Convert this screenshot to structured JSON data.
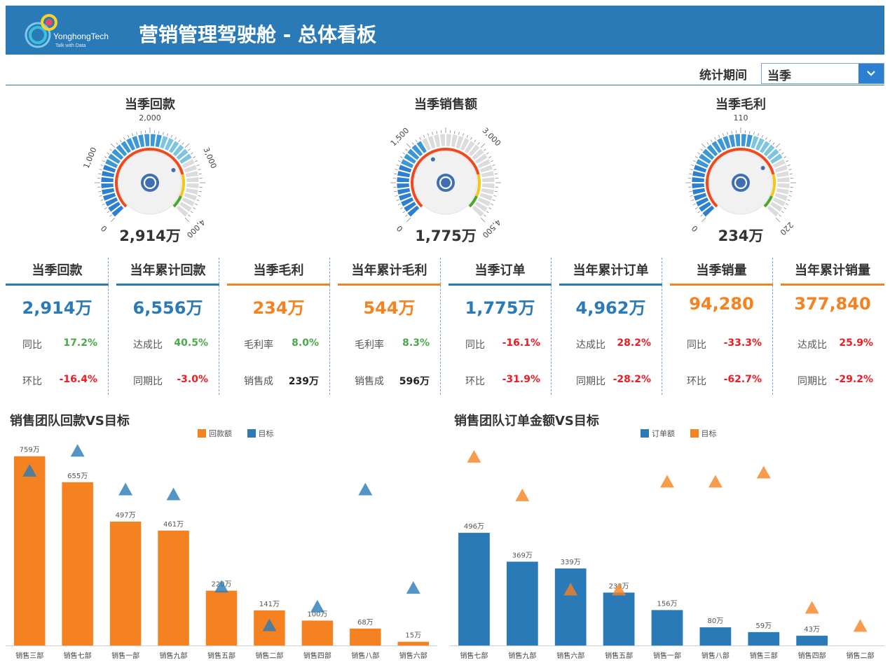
{
  "header": {
    "logo_name": "YonghongTech",
    "logo_tagline": "Talk with Data",
    "title": "营销管理驾驶舱 - 总体看板"
  },
  "filter": {
    "label": "统计期间",
    "value": "当季",
    "icon": "chevron-down-icon"
  },
  "colors": {
    "header_bg": "#2b7ab8",
    "blue": "#2b7ab8",
    "orange": "#f58220",
    "green": "#4aaa48",
    "red": "#ee1c24"
  },
  "gauges": [
    {
      "title": "当季回款",
      "value_text": "2,914万",
      "value": 2914,
      "min": 0,
      "max": 4000,
      "ticks": [
        "0",
        "1,000",
        "2,000",
        "3,000",
        "4,000"
      ]
    },
    {
      "title": "当季销售额",
      "value_text": "1,775万",
      "value": 1775,
      "min": 0,
      "max": 4500,
      "ticks": [
        "0",
        "1,500",
        "3,000",
        "4,500"
      ]
    },
    {
      "title": "当季毛利",
      "value_text": "234万",
      "value": 234,
      "min": 0,
      "max": 330,
      "ticks": [
        "0",
        "110",
        "220"
      ]
    }
  ],
  "kpis": [
    {
      "title": "当季回款",
      "value": "2,914万",
      "theme": "blue",
      "rows": [
        {
          "label": "同比",
          "value": "17.2%",
          "tone": "green"
        },
        {
          "label": "环比",
          "value": "-16.4%",
          "tone": "red"
        }
      ]
    },
    {
      "title": "当年累计回款",
      "value": "6,556万",
      "theme": "blue",
      "rows": [
        {
          "label": "达成比",
          "value": "40.5%",
          "tone": "green"
        },
        {
          "label": "同期比",
          "value": "-3.0%",
          "tone": "red"
        }
      ]
    },
    {
      "title": "当季毛利",
      "value": "234万",
      "theme": "orange",
      "rows": [
        {
          "label": "毛利率",
          "value": "8.0%",
          "tone": "green"
        },
        {
          "label": "销售成",
          "value": "239万",
          "tone": "dark"
        }
      ]
    },
    {
      "title": "当年累计毛利",
      "value": "544万",
      "theme": "orange",
      "rows": [
        {
          "label": "毛利率",
          "value": "8.3%",
          "tone": "green"
        },
        {
          "label": "销售成",
          "value": "596万",
          "tone": "dark"
        }
      ]
    },
    {
      "title": "当季订单",
      "value": "1,775万",
      "theme": "blue",
      "rows": [
        {
          "label": "同比",
          "value": "-16.1%",
          "tone": "red"
        },
        {
          "label": "环比",
          "value": "-31.9%",
          "tone": "red"
        }
      ]
    },
    {
      "title": "当年累计订单",
      "value": "4,962万",
      "theme": "blue",
      "rows": [
        {
          "label": "达成比",
          "value": "28.2%",
          "tone": "red"
        },
        {
          "label": "同期比",
          "value": "-28.2%",
          "tone": "red"
        }
      ]
    },
    {
      "title": "当季销量",
      "value": "94,280",
      "theme": "orange",
      "rows": [
        {
          "label": "同比",
          "value": "-33.3%",
          "tone": "red"
        },
        {
          "label": "环比",
          "value": "-62.7%",
          "tone": "red"
        }
      ]
    },
    {
      "title": "当年累计销量",
      "value": "377,840",
      "theme": "orange",
      "rows": [
        {
          "label": "达成比",
          "value": "25.9%",
          "tone": "red"
        },
        {
          "label": "同期比",
          "value": "-29.2%",
          "tone": "red"
        }
      ]
    }
  ],
  "chart_data": [
    {
      "type": "bar",
      "title": "销售团队回款VS目标",
      "categories": [
        "销售三部",
        "销售七部",
        "销售一部",
        "销售九部",
        "销售五部",
        "销售二部",
        "销售四部",
        "销售八部",
        "销售六部"
      ],
      "series": [
        {
          "name": "回款额",
          "kind": "bar",
          "color": "#f58220",
          "values": [
            759,
            655,
            497,
            461,
            220,
            141,
            100,
            68,
            15
          ]
        },
        {
          "name": "目标",
          "kind": "marker",
          "color": "#2b7ab8",
          "values": [
            700,
            780,
            625,
            605,
            235,
            80,
            155,
            625,
            230
          ]
        }
      ],
      "value_labels": [
        "759万",
        "655万",
        "497万",
        "461万",
        "220万",
        "141万",
        "100万",
        "68万",
        "15万"
      ],
      "ylim": [
        0,
        820
      ]
    },
    {
      "type": "bar",
      "title": "销售团队订单金额VS目标",
      "categories": [
        "销售七部",
        "销售九部",
        "销售六部",
        "销售五部",
        "销售一部",
        "销售八部",
        "销售三部",
        "销售四部",
        "销售二部"
      ],
      "series": [
        {
          "name": "订单额",
          "kind": "bar",
          "color": "#2b7ab8",
          "values": [
            496,
            369,
            339,
            233,
            156,
            80,
            59,
            43,
            0
          ]
        },
        {
          "name": "目标",
          "kind": "marker",
          "color": "#f58220",
          "values": [
            830,
            660,
            245,
            245,
            720,
            720,
            760,
            165,
            85
          ]
        }
      ],
      "value_labels": [
        "496万",
        "369万",
        "339万",
        "233万",
        "156万",
        "80万",
        "59万",
        "43万",
        ""
      ],
      "ylim": [
        0,
        900
      ]
    }
  ]
}
